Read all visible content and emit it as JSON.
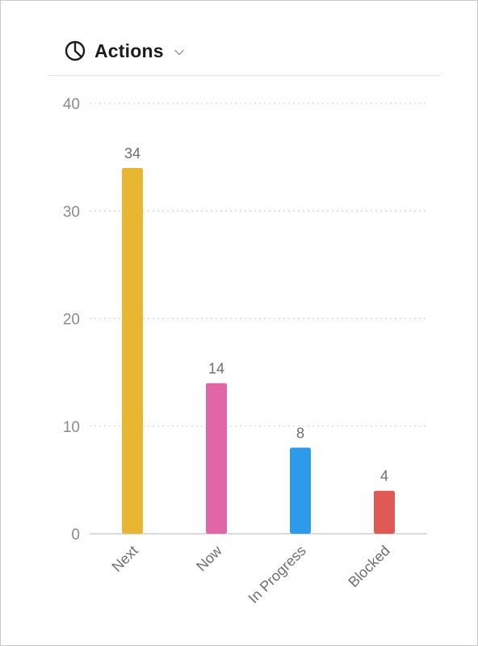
{
  "header": {
    "title": "Actions",
    "icon": "pie-chart-icon",
    "dropdown_icon": "chevron-down-icon"
  },
  "chart_data": {
    "type": "bar",
    "title": "Actions",
    "categories": [
      "Next",
      "Now",
      "In Progress",
      "Blocked"
    ],
    "values": [
      34,
      14,
      8,
      4
    ],
    "colors": [
      "#E8B630",
      "#E066A8",
      "#2E9AEB",
      "#E05A55"
    ],
    "data_labels": [
      "34",
      "14",
      "8",
      "4"
    ],
    "ylim": [
      0,
      40
    ],
    "yticks": [
      0,
      10,
      20,
      30,
      40
    ],
    "grid": true,
    "xlabel": "",
    "ylabel": ""
  }
}
